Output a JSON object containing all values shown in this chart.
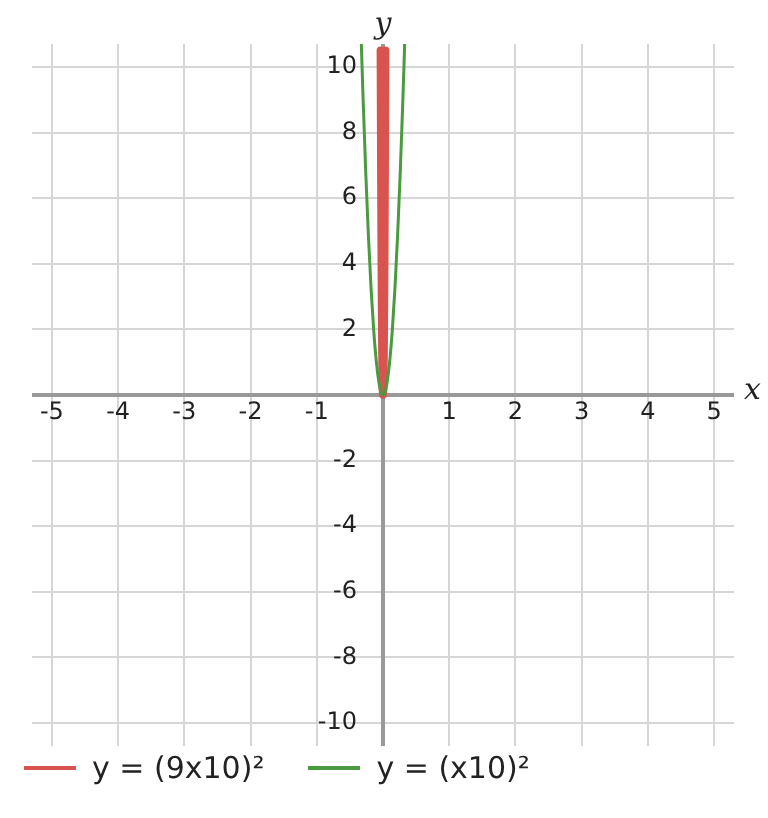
{
  "chart_data": {
    "type": "line",
    "xlabel": "x",
    "ylabel": "y",
    "xlim": [
      -5.3,
      5.3
    ],
    "ylim": [
      -10.7,
      10.7
    ],
    "xticks": [
      -5,
      -4,
      -3,
      -2,
      -1,
      1,
      2,
      3,
      4,
      5
    ],
    "yticks": [
      -10,
      -8,
      -6,
      -4,
      -2,
      {
        "value": 0,
        "label": null
      },
      2,
      4,
      6,
      8,
      10
    ],
    "grid": true,
    "legend": "bottom",
    "marker": "none",
    "line_style": "solid",
    "series": [
      {
        "name": "y = (9x10)²",
        "color": "#d9534f",
        "x": [
          -0.036,
          -0.03,
          -0.025,
          -0.02,
          -0.015,
          -0.01,
          -0.005,
          0,
          0.005,
          0.01,
          0.015,
          0.02,
          0.025,
          0.03,
          0.036
        ],
        "values": [
          10.5,
          7.29,
          5.06,
          3.24,
          1.82,
          0.81,
          0.2,
          0,
          0.2,
          0.81,
          1.82,
          3.24,
          5.06,
          7.29,
          10.5
        ]
      },
      {
        "name": "y = (x10)²",
        "color": "#4a9a3f",
        "x": [
          -0.327,
          -0.3,
          -0.26,
          -0.22,
          -0.18,
          -0.14,
          -0.1,
          -0.06,
          -0.03,
          0,
          0.03,
          0.06,
          0.1,
          0.14,
          0.18,
          0.22,
          0.26,
          0.3,
          0.327
        ],
        "values": [
          10.69,
          9,
          6.76,
          4.84,
          3.24,
          1.96,
          1,
          0.36,
          0.09,
          0,
          0.09,
          0.36,
          1,
          1.96,
          3.24,
          4.84,
          6.76,
          9,
          10.69
        ]
      }
    ]
  }
}
